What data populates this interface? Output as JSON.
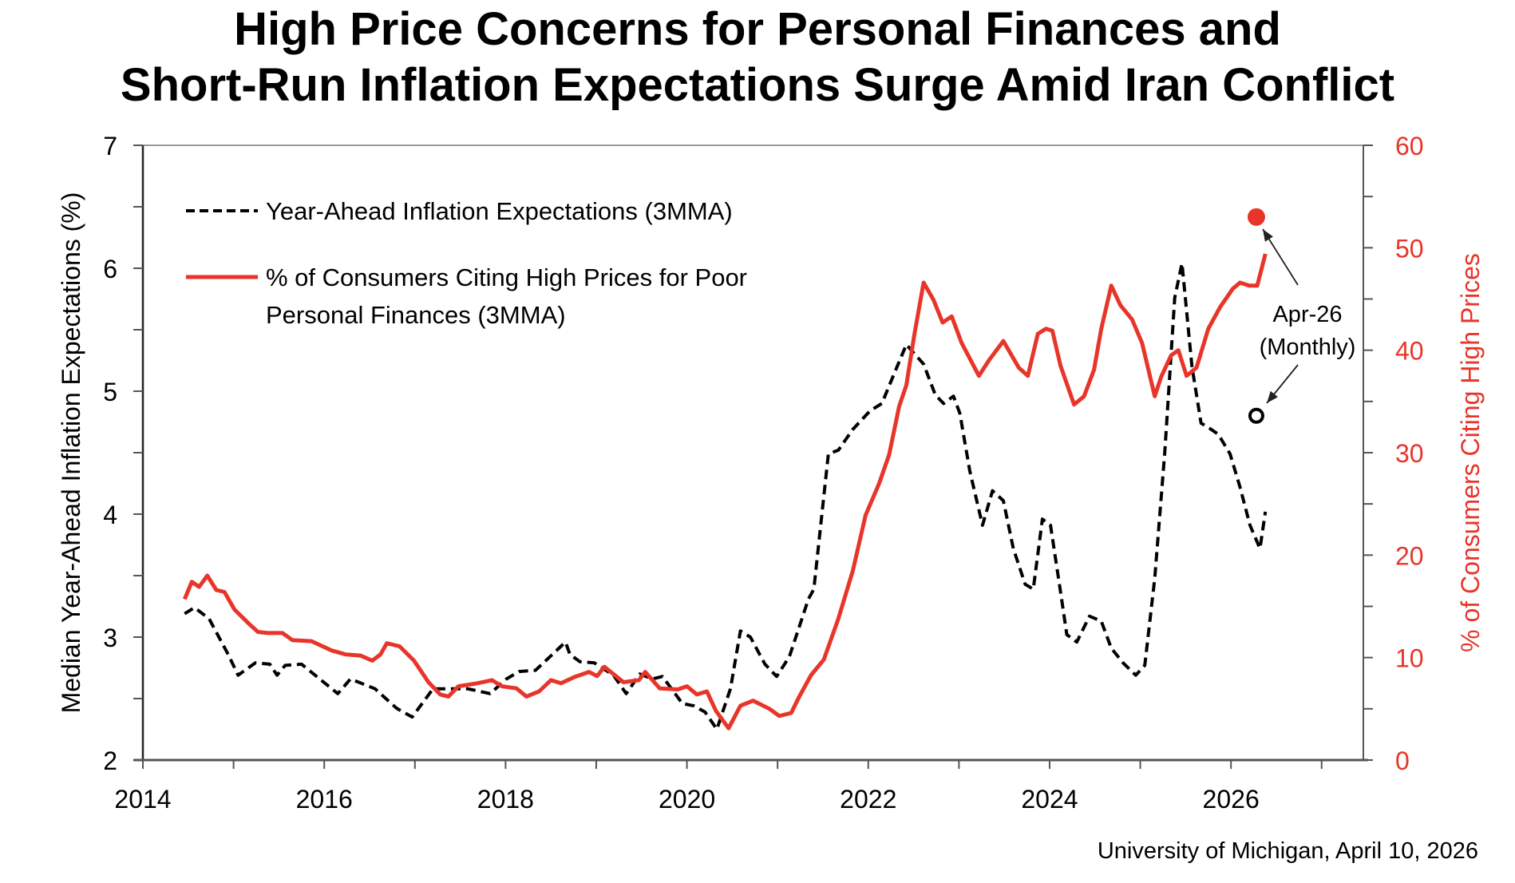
{
  "chart_data": {
    "type": "line",
    "title": [
      "High Price Concerns for Personal Finances and",
      "Short-Run Inflation Expectations Surge Amid Iran Conflict"
    ],
    "xlabel": "",
    "ylabel_left": "Median Year-Ahead Inflation Expectations (%)",
    "ylabel_right": "% of Consumers Citing High Prices",
    "xlim": [
      2014,
      2027.46
    ],
    "ylim_left": [
      2,
      7
    ],
    "ylim_right": [
      0,
      60
    ],
    "x_ticks": [
      2014,
      2016,
      2018,
      2020,
      2022,
      2024,
      2026
    ],
    "y_ticks_left": [
      2,
      3,
      4,
      5,
      6,
      7
    ],
    "y_ticks_right": [
      0,
      10,
      20,
      30,
      40,
      50,
      60
    ],
    "grid": false,
    "legend_position": "top-left",
    "colors": {
      "expectations": "#000000",
      "prices": "#e8352a",
      "right_axis": "#e8352a"
    },
    "series": [
      {
        "name": "Year-Ahead Inflation Expectations (3MMA)",
        "axis": "left",
        "style": "dashed",
        "points": [
          [
            2014.46,
            3.19
          ],
          [
            2014.57,
            3.24
          ],
          [
            2014.73,
            3.15
          ],
          [
            2014.94,
            2.86
          ],
          [
            2015.05,
            2.69
          ],
          [
            2015.24,
            2.79
          ],
          [
            2015.4,
            2.78
          ],
          [
            2015.48,
            2.69
          ],
          [
            2015.57,
            2.77
          ],
          [
            2015.75,
            2.78
          ],
          [
            2016.0,
            2.63
          ],
          [
            2016.15,
            2.54
          ],
          [
            2016.29,
            2.66
          ],
          [
            2016.56,
            2.58
          ],
          [
            2016.8,
            2.42
          ],
          [
            2016.97,
            2.35
          ],
          [
            2017.2,
            2.58
          ],
          [
            2017.39,
            2.58
          ],
          [
            2017.58,
            2.58
          ],
          [
            2017.83,
            2.54
          ],
          [
            2018.01,
            2.66
          ],
          [
            2018.15,
            2.72
          ],
          [
            2018.33,
            2.73
          ],
          [
            2018.66,
            2.96
          ],
          [
            2018.71,
            2.86
          ],
          [
            2018.82,
            2.8
          ],
          [
            2018.98,
            2.79
          ],
          [
            2019.19,
            2.69
          ],
          [
            2019.33,
            2.54
          ],
          [
            2019.48,
            2.7
          ],
          [
            2019.62,
            2.66
          ],
          [
            2019.73,
            2.68
          ],
          [
            2019.95,
            2.46
          ],
          [
            2020.08,
            2.44
          ],
          [
            2020.2,
            2.39
          ],
          [
            2020.33,
            2.25
          ],
          [
            2020.48,
            2.58
          ],
          [
            2020.59,
            3.05
          ],
          [
            2020.7,
            3.0
          ],
          [
            2020.86,
            2.78
          ],
          [
            2020.99,
            2.68
          ],
          [
            2021.13,
            2.84
          ],
          [
            2021.34,
            3.31
          ],
          [
            2021.4,
            3.39
          ],
          [
            2021.56,
            4.49
          ],
          [
            2021.67,
            4.52
          ],
          [
            2021.83,
            4.69
          ],
          [
            2022.02,
            4.84
          ],
          [
            2022.15,
            4.9
          ],
          [
            2022.29,
            5.15
          ],
          [
            2022.42,
            5.38
          ],
          [
            2022.61,
            5.22
          ],
          [
            2022.74,
            4.97
          ],
          [
            2022.83,
            4.9
          ],
          [
            2022.94,
            4.96
          ],
          [
            2023.01,
            4.82
          ],
          [
            2023.12,
            4.35
          ],
          [
            2023.26,
            3.91
          ],
          [
            2023.37,
            4.19
          ],
          [
            2023.49,
            4.11
          ],
          [
            2023.6,
            3.72
          ],
          [
            2023.73,
            3.43
          ],
          [
            2023.82,
            3.39
          ],
          [
            2023.92,
            3.96
          ],
          [
            2024.01,
            3.91
          ],
          [
            2024.12,
            3.37
          ],
          [
            2024.19,
            3.02
          ],
          [
            2024.3,
            2.96
          ],
          [
            2024.44,
            3.17
          ],
          [
            2024.57,
            3.13
          ],
          [
            2024.68,
            2.91
          ],
          [
            2024.81,
            2.79
          ],
          [
            2024.95,
            2.69
          ],
          [
            2025.05,
            2.77
          ],
          [
            2025.16,
            3.48
          ],
          [
            2025.27,
            4.5
          ],
          [
            2025.38,
            5.76
          ],
          [
            2025.46,
            6.04
          ],
          [
            2025.57,
            5.2
          ],
          [
            2025.67,
            4.74
          ],
          [
            2025.76,
            4.7
          ],
          [
            2025.86,
            4.65
          ],
          [
            2025.99,
            4.49
          ],
          [
            2026.1,
            4.22
          ],
          [
            2026.21,
            3.91
          ],
          [
            2026.32,
            3.72
          ],
          [
            2026.38,
            4.02
          ]
        ]
      },
      {
        "name": "% of Consumers Citing High Prices for Poor Personal Finances (3MMA)",
        "axis": "right",
        "style": "solid",
        "points": [
          [
            2014.46,
            15.7
          ],
          [
            2014.54,
            17.4
          ],
          [
            2014.62,
            16.9
          ],
          [
            2014.71,
            18.0
          ],
          [
            2014.81,
            16.6
          ],
          [
            2014.9,
            16.4
          ],
          [
            2015.01,
            14.7
          ],
          [
            2015.17,
            13.3
          ],
          [
            2015.27,
            12.5
          ],
          [
            2015.38,
            12.4
          ],
          [
            2015.54,
            12.4
          ],
          [
            2015.65,
            11.7
          ],
          [
            2015.86,
            11.6
          ],
          [
            2016.08,
            10.7
          ],
          [
            2016.24,
            10.3
          ],
          [
            2016.4,
            10.2
          ],
          [
            2016.53,
            9.7
          ],
          [
            2016.62,
            10.3
          ],
          [
            2016.69,
            11.4
          ],
          [
            2016.83,
            11.1
          ],
          [
            2016.99,
            9.7
          ],
          [
            2017.15,
            7.6
          ],
          [
            2017.28,
            6.4
          ],
          [
            2017.37,
            6.2
          ],
          [
            2017.48,
            7.2
          ],
          [
            2017.69,
            7.5
          ],
          [
            2017.85,
            7.8
          ],
          [
            2017.96,
            7.2
          ],
          [
            2018.12,
            7.0
          ],
          [
            2018.23,
            6.2
          ],
          [
            2018.37,
            6.7
          ],
          [
            2018.5,
            7.8
          ],
          [
            2018.61,
            7.5
          ],
          [
            2018.76,
            8.1
          ],
          [
            2018.92,
            8.6
          ],
          [
            2019.01,
            8.2
          ],
          [
            2019.09,
            9.1
          ],
          [
            2019.3,
            7.6
          ],
          [
            2019.47,
            7.8
          ],
          [
            2019.54,
            8.6
          ],
          [
            2019.7,
            7.0
          ],
          [
            2019.9,
            6.9
          ],
          [
            2020.0,
            7.2
          ],
          [
            2020.11,
            6.4
          ],
          [
            2020.22,
            6.7
          ],
          [
            2020.32,
            4.8
          ],
          [
            2020.46,
            3.1
          ],
          [
            2020.59,
            5.3
          ],
          [
            2020.73,
            5.8
          ],
          [
            2020.91,
            5.0
          ],
          [
            2021.02,
            4.3
          ],
          [
            2021.15,
            4.6
          ],
          [
            2021.24,
            6.2
          ],
          [
            2021.37,
            8.3
          ],
          [
            2021.51,
            9.8
          ],
          [
            2021.67,
            13.8
          ],
          [
            2021.83,
            18.5
          ],
          [
            2021.97,
            23.9
          ],
          [
            2022.12,
            27.0
          ],
          [
            2022.23,
            29.8
          ],
          [
            2022.34,
            34.5
          ],
          [
            2022.42,
            36.6
          ],
          [
            2022.51,
            41.6
          ],
          [
            2022.61,
            46.6
          ],
          [
            2022.72,
            44.9
          ],
          [
            2022.82,
            42.7
          ],
          [
            2022.92,
            43.3
          ],
          [
            2023.03,
            40.7
          ],
          [
            2023.22,
            37.5
          ],
          [
            2023.33,
            39.0
          ],
          [
            2023.49,
            40.9
          ],
          [
            2023.66,
            38.3
          ],
          [
            2023.76,
            37.5
          ],
          [
            2023.87,
            41.6
          ],
          [
            2023.96,
            42.1
          ],
          [
            2024.03,
            41.9
          ],
          [
            2024.12,
            38.5
          ],
          [
            2024.27,
            34.7
          ],
          [
            2024.38,
            35.5
          ],
          [
            2024.49,
            38.1
          ],
          [
            2024.57,
            42.1
          ],
          [
            2024.68,
            46.3
          ],
          [
            2024.78,
            44.4
          ],
          [
            2024.91,
            43.0
          ],
          [
            2025.02,
            40.7
          ],
          [
            2025.16,
            35.5
          ],
          [
            2025.23,
            37.4
          ],
          [
            2025.34,
            39.5
          ],
          [
            2025.42,
            40.0
          ],
          [
            2025.51,
            37.5
          ],
          [
            2025.62,
            38.3
          ],
          [
            2025.75,
            42.1
          ],
          [
            2025.88,
            44.2
          ],
          [
            2026.02,
            46.0
          ],
          [
            2026.1,
            46.6
          ],
          [
            2026.2,
            46.3
          ],
          [
            2026.29,
            46.3
          ],
          [
            2026.38,
            49.4
          ]
        ]
      }
    ],
    "monthly_markers": [
      {
        "name": "Apr-26 prices (monthly)",
        "axis": "right",
        "x": 2026.28,
        "y": 53.0,
        "style": "filled-circle"
      },
      {
        "name": "Apr-26 expectations (monthly)",
        "axis": "left",
        "x": 2026.28,
        "y": 4.8,
        "style": "open-circle"
      }
    ],
    "legend": [
      {
        "label": "Year-Ahead Inflation Expectations (3MMA)",
        "style": "dashed"
      },
      {
        "label_lines": [
          "% of Consumers Citing High Prices for Poor",
          "Personal Finances (3MMA)"
        ],
        "style": "solid"
      }
    ],
    "annotation": [
      "Apr-26",
      "(Monthly)"
    ],
    "source": "University of Michigan, April 10, 2026"
  }
}
